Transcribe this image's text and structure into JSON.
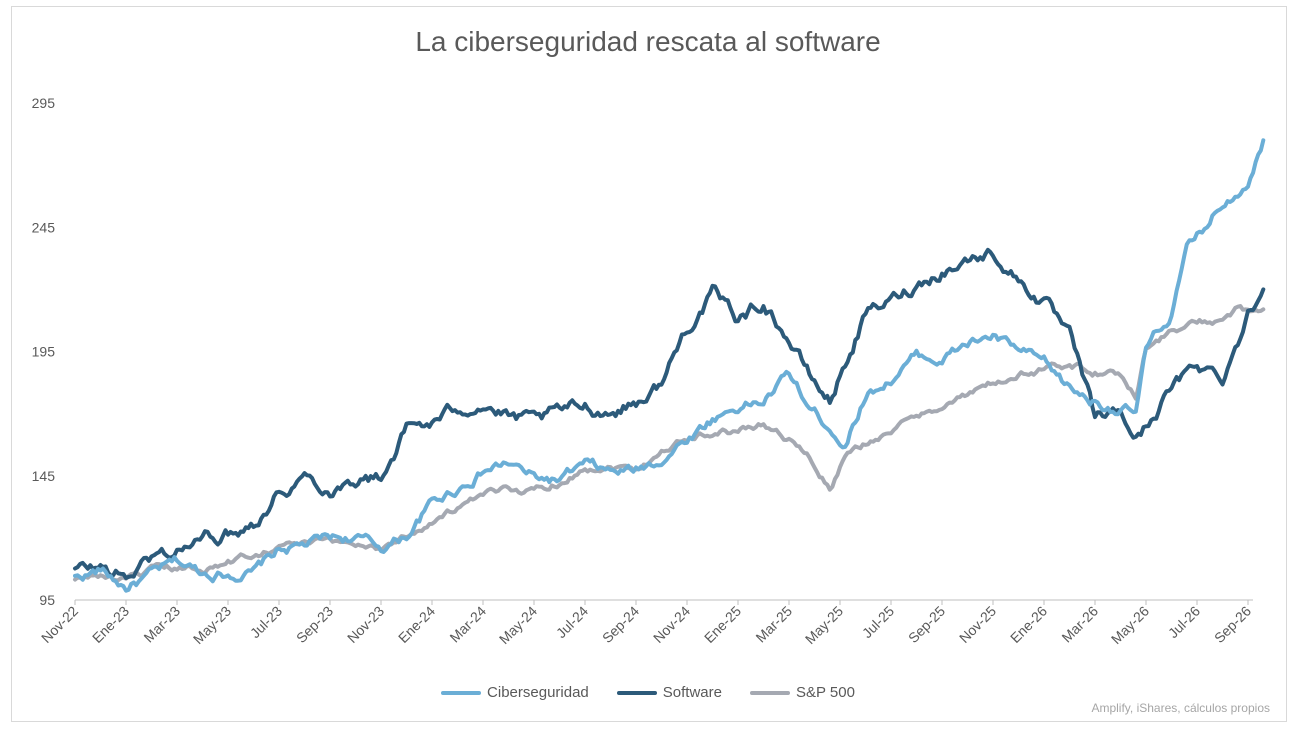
{
  "chart_data": {
    "type": "line",
    "title": "La ciberseguridad rescata al software",
    "xlabel": "",
    "ylabel": "",
    "ylim": [
      95,
      300
    ],
    "yticks": [
      "95",
      "145",
      "195",
      "245",
      "295"
    ],
    "xticks": [
      "Nov-22",
      "Ene-23",
      "Mar-23",
      "May-23",
      "Jul-23",
      "Sep-23",
      "Nov-23",
      "Ene-24",
      "Mar-24",
      "May-24",
      "Jul-24",
      "Sep-24",
      "Nov-24",
      "Ene-25",
      "Mar-25",
      "May-25",
      "Jul-25",
      "Sep-25",
      "Nov-25",
      "Ene-26",
      "Mar-26",
      "May-26",
      "Jul-26",
      "Sep-26"
    ],
    "x_end": 23.3,
    "grid": false,
    "legend_position": "bottom",
    "source": "Amplify, iShares, cálculos propios",
    "series": [
      {
        "name": "Ciberseguridad",
        "color": "#6baed6",
        "points": [
          [
            0,
            104
          ],
          [
            0.5,
            107
          ],
          [
            1,
            100
          ],
          [
            1.5,
            105
          ],
          [
            2,
            110
          ],
          [
            2.5,
            106
          ],
          [
            3,
            106
          ],
          [
            3.5,
            106
          ],
          [
            4,
            115
          ],
          [
            4.5,
            117
          ],
          [
            5,
            120
          ],
          [
            5.5,
            120
          ],
          [
            6,
            116
          ],
          [
            6.5,
            121
          ],
          [
            7,
            134
          ],
          [
            7.5,
            140
          ],
          [
            8,
            147
          ],
          [
            8.5,
            150
          ],
          [
            9,
            144
          ],
          [
            9.5,
            143
          ],
          [
            10,
            149
          ],
          [
            10.5,
            146
          ],
          [
            11,
            147
          ],
          [
            11.5,
            152
          ],
          [
            12,
            160
          ],
          [
            12.5,
            168
          ],
          [
            13,
            173
          ],
          [
            13.5,
            175
          ],
          [
            14,
            186
          ],
          [
            14.4,
            172
          ],
          [
            14.8,
            165
          ],
          [
            15.1,
            158
          ],
          [
            15.5,
            178
          ],
          [
            16,
            184
          ],
          [
            16.5,
            193
          ],
          [
            17,
            192
          ],
          [
            17.5,
            198
          ],
          [
            18,
            201
          ],
          [
            18.5,
            195
          ],
          [
            19,
            190
          ],
          [
            19.5,
            180
          ],
          [
            20,
            175
          ],
          [
            20.5,
            172
          ],
          [
            20.8,
            170
          ],
          [
            21,
            195
          ],
          [
            21.5,
            210
          ],
          [
            21.8,
            235
          ],
          [
            22,
            240
          ],
          [
            22.5,
            255
          ],
          [
            22.8,
            260
          ],
          [
            23,
            265
          ],
          [
            23.3,
            280
          ]
        ]
      },
      {
        "name": "Software",
        "color": "#2c5a7a",
        "points": [
          [
            0,
            107
          ],
          [
            0.5,
            108
          ],
          [
            1,
            104
          ],
          [
            1.5,
            112
          ],
          [
            2,
            115
          ],
          [
            2.5,
            120
          ],
          [
            3,
            122
          ],
          [
            3.5,
            127
          ],
          [
            4,
            139
          ],
          [
            4.5,
            145
          ],
          [
            5,
            140
          ],
          [
            5.5,
            144
          ],
          [
            6,
            144
          ],
          [
            6.5,
            164
          ],
          [
            7,
            166
          ],
          [
            7.5,
            172
          ],
          [
            8,
            175
          ],
          [
            8.5,
            168
          ],
          [
            9,
            166
          ],
          [
            9.5,
            170
          ],
          [
            10,
            173
          ],
          [
            10.5,
            171
          ],
          [
            11,
            175
          ],
          [
            11.5,
            182
          ],
          [
            12,
            205
          ],
          [
            12.5,
            218
          ],
          [
            13,
            208
          ],
          [
            13.5,
            215
          ],
          [
            14,
            200
          ],
          [
            14.4,
            185
          ],
          [
            14.8,
            175
          ],
          [
            15.1,
            190
          ],
          [
            15.5,
            210
          ],
          [
            16,
            215
          ],
          [
            16.5,
            222
          ],
          [
            17,
            228
          ],
          [
            17.5,
            232
          ],
          [
            18,
            235
          ],
          [
            18.5,
            224
          ],
          [
            19,
            215
          ],
          [
            19.5,
            200
          ],
          [
            20,
            168
          ],
          [
            20.5,
            170
          ],
          [
            20.8,
            160
          ],
          [
            21,
            165
          ],
          [
            21.5,
            180
          ],
          [
            21.8,
            185
          ],
          [
            22,
            190
          ],
          [
            22.5,
            185
          ],
          [
            22.8,
            200
          ],
          [
            23,
            210
          ],
          [
            23.3,
            220
          ]
        ]
      },
      {
        "name": "S&P 500",
        "color": "#a5a9b2",
        "points": [
          [
            0,
            103
          ],
          [
            0.5,
            105
          ],
          [
            1,
            102
          ],
          [
            1.5,
            106
          ],
          [
            2,
            107
          ],
          [
            2.5,
            108
          ],
          [
            3,
            110
          ],
          [
            3.5,
            114
          ],
          [
            4,
            117
          ],
          [
            4.5,
            118
          ],
          [
            5,
            118
          ],
          [
            5.5,
            118
          ],
          [
            6,
            116
          ],
          [
            6.5,
            121
          ],
          [
            7,
            127
          ],
          [
            7.5,
            132
          ],
          [
            8,
            136
          ],
          [
            8.5,
            140
          ],
          [
            9,
            139
          ],
          [
            9.5,
            143
          ],
          [
            10,
            148
          ],
          [
            10.5,
            149
          ],
          [
            11,
            148
          ],
          [
            11.5,
            155
          ],
          [
            12,
            160
          ],
          [
            12.5,
            163
          ],
          [
            13,
            163
          ],
          [
            13.5,
            166
          ],
          [
            14,
            160
          ],
          [
            14.4,
            152
          ],
          [
            14.8,
            140
          ],
          [
            15.1,
            152
          ],
          [
            15.5,
            158
          ],
          [
            16,
            163
          ],
          [
            16.5,
            168
          ],
          [
            17,
            174
          ],
          [
            17.5,
            177
          ],
          [
            18,
            182
          ],
          [
            18.5,
            185
          ],
          [
            19,
            188
          ],
          [
            19.5,
            190
          ],
          [
            20,
            187
          ],
          [
            20.5,
            185
          ],
          [
            20.8,
            178
          ],
          [
            21,
            197
          ],
          [
            21.5,
            203
          ],
          [
            21.8,
            205
          ],
          [
            22,
            206
          ],
          [
            22.5,
            208
          ],
          [
            22.8,
            212
          ],
          [
            23,
            210
          ],
          [
            23.3,
            212
          ]
        ]
      }
    ]
  }
}
